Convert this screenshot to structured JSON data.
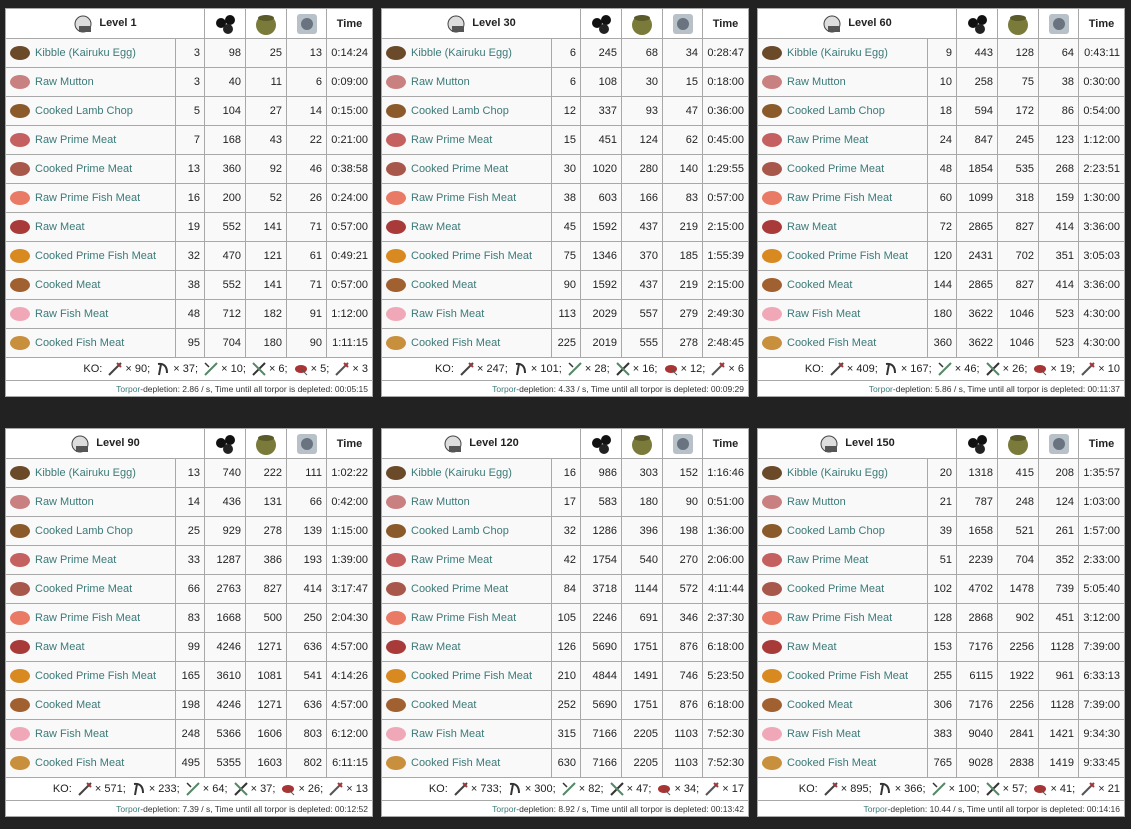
{
  "foods": [
    "Kibble (Kairuku Egg)",
    "Raw Mutton",
    "Cooked Lamb Chop",
    "Raw Prime Meat",
    "Cooked Prime Meat",
    "Raw Prime Fish Meat",
    "Raw Meat",
    "Cooked Prime Fish Meat",
    "Cooked Meat",
    "Raw Fish Meat",
    "Cooked Fish Meat"
  ],
  "header_time": "Time",
  "ko_label": "KO:",
  "torpor_link": "Torpor",
  "panels": [
    {
      "title": "Level 1",
      "rows": [
        [
          3,
          98,
          25,
          13,
          "0:14:24"
        ],
        [
          3,
          40,
          11,
          6,
          "0:09:00"
        ],
        [
          5,
          104,
          27,
          14,
          "0:15:00"
        ],
        [
          7,
          168,
          43,
          22,
          "0:21:00"
        ],
        [
          13,
          360,
          92,
          46,
          "0:38:58"
        ],
        [
          16,
          200,
          52,
          26,
          "0:24:00"
        ],
        [
          19,
          552,
          141,
          71,
          "0:57:00"
        ],
        [
          32,
          470,
          121,
          61,
          "0:49:21"
        ],
        [
          38,
          552,
          141,
          71,
          "0:57:00"
        ],
        [
          48,
          712,
          182,
          91,
          "1:12:00"
        ],
        [
          95,
          704,
          180,
          90,
          "1:11:15"
        ]
      ],
      "ko": [
        "× 90;",
        "× 37;",
        "× 10;",
        "× 6;",
        "× 5;",
        "× 3"
      ],
      "torpor_text": "-depletion: 2.86 / s, Time until all torpor is depleted: 00:05:15"
    },
    {
      "title": "Level 30",
      "rows": [
        [
          6,
          245,
          68,
          34,
          "0:28:47"
        ],
        [
          6,
          108,
          30,
          15,
          "0:18:00"
        ],
        [
          12,
          337,
          93,
          47,
          "0:36:00"
        ],
        [
          15,
          451,
          124,
          62,
          "0:45:00"
        ],
        [
          30,
          1020,
          280,
          140,
          "1:29:55"
        ],
        [
          38,
          603,
          166,
          83,
          "0:57:00"
        ],
        [
          45,
          1592,
          437,
          219,
          "2:15:00"
        ],
        [
          75,
          1346,
          370,
          185,
          "1:55:39"
        ],
        [
          90,
          1592,
          437,
          219,
          "2:15:00"
        ],
        [
          113,
          2029,
          557,
          279,
          "2:49:30"
        ],
        [
          225,
          2019,
          555,
          278,
          "2:48:45"
        ]
      ],
      "ko": [
        "× 247;",
        "× 101;",
        "× 28;",
        "× 16;",
        "× 12;",
        "× 6"
      ],
      "torpor_text": "-depletion: 4.33 / s, Time until all torpor is depleted: 00:09:29"
    },
    {
      "title": "Level 60",
      "rows": [
        [
          9,
          443,
          128,
          64,
          "0:43:11"
        ],
        [
          10,
          258,
          75,
          38,
          "0:30:00"
        ],
        [
          18,
          594,
          172,
          86,
          "0:54:00"
        ],
        [
          24,
          847,
          245,
          123,
          "1:12:00"
        ],
        [
          48,
          1854,
          535,
          268,
          "2:23:51"
        ],
        [
          60,
          1099,
          318,
          159,
          "1:30:00"
        ],
        [
          72,
          2865,
          827,
          414,
          "3:36:00"
        ],
        [
          120,
          2431,
          702,
          351,
          "3:05:03"
        ],
        [
          144,
          2865,
          827,
          414,
          "3:36:00"
        ],
        [
          180,
          3622,
          1046,
          523,
          "4:30:00"
        ],
        [
          360,
          3622,
          1046,
          523,
          "4:30:00"
        ]
      ],
      "ko": [
        "× 409;",
        "× 167;",
        "× 46;",
        "× 26;",
        "× 19;",
        "× 10"
      ],
      "torpor_text": "-depletion: 5.86 / s, Time until all torpor is depleted: 00:11:37"
    },
    {
      "title": "Level 90",
      "rows": [
        [
          13,
          740,
          222,
          111,
          "1:02:22"
        ],
        [
          14,
          436,
          131,
          66,
          "0:42:00"
        ],
        [
          25,
          929,
          278,
          139,
          "1:15:00"
        ],
        [
          33,
          1287,
          386,
          193,
          "1:39:00"
        ],
        [
          66,
          2763,
          827,
          414,
          "3:17:47"
        ],
        [
          83,
          1668,
          500,
          250,
          "2:04:30"
        ],
        [
          99,
          4246,
          1271,
          636,
          "4:57:00"
        ],
        [
          165,
          3610,
          1081,
          541,
          "4:14:26"
        ],
        [
          198,
          4246,
          1271,
          636,
          "4:57:00"
        ],
        [
          248,
          5366,
          1606,
          803,
          "6:12:00"
        ],
        [
          495,
          5355,
          1603,
          802,
          "6:11:15"
        ]
      ],
      "ko": [
        "× 571;",
        "× 233;",
        "× 64;",
        "× 37;",
        "× 26;",
        "× 13"
      ],
      "torpor_text": "-depletion: 7.39 / s, Time until all torpor is depleted: 00:12:52"
    },
    {
      "title": "Level 120",
      "rows": [
        [
          16,
          986,
          303,
          152,
          "1:16:46"
        ],
        [
          17,
          583,
          180,
          90,
          "0:51:00"
        ],
        [
          32,
          1286,
          396,
          198,
          "1:36:00"
        ],
        [
          42,
          1754,
          540,
          270,
          "2:06:00"
        ],
        [
          84,
          3718,
          1144,
          572,
          "4:11:44"
        ],
        [
          105,
          2246,
          691,
          346,
          "2:37:30"
        ],
        [
          126,
          5690,
          1751,
          876,
          "6:18:00"
        ],
        [
          210,
          4844,
          1491,
          746,
          "5:23:50"
        ],
        [
          252,
          5690,
          1751,
          876,
          "6:18:00"
        ],
        [
          315,
          7166,
          2205,
          1103,
          "7:52:30"
        ],
        [
          630,
          7166,
          2205,
          1103,
          "7:52:30"
        ]
      ],
      "ko": [
        "× 733;",
        "× 300;",
        "× 82;",
        "× 47;",
        "× 34;",
        "× 17"
      ],
      "torpor_text": "-depletion: 8.92 / s, Time until all torpor is depleted: 00:13:42"
    },
    {
      "title": "Level 150",
      "rows": [
        [
          20,
          1318,
          415,
          208,
          "1:35:57"
        ],
        [
          21,
          787,
          248,
          124,
          "1:03:00"
        ],
        [
          39,
          1658,
          521,
          261,
          "1:57:00"
        ],
        [
          51,
          2239,
          704,
          352,
          "2:33:00"
        ],
        [
          102,
          4702,
          1478,
          739,
          "5:05:40"
        ],
        [
          128,
          2868,
          902,
          451,
          "3:12:00"
        ],
        [
          153,
          7176,
          2256,
          1128,
          "7:39:00"
        ],
        [
          255,
          6115,
          1922,
          961,
          "6:33:13"
        ],
        [
          306,
          7176,
          2256,
          1128,
          "7:39:00"
        ],
        [
          383,
          9040,
          2841,
          1421,
          "9:34:30"
        ],
        [
          765,
          9028,
          2838,
          1419,
          "9:33:45"
        ]
      ],
      "ko": [
        "× 895;",
        "× 366;",
        "× 100;",
        "× 57;",
        "× 41;",
        "× 21"
      ],
      "torpor_text": "-depletion: 10.44 / s, Time until all torpor is depleted: 00:14:16"
    }
  ]
}
